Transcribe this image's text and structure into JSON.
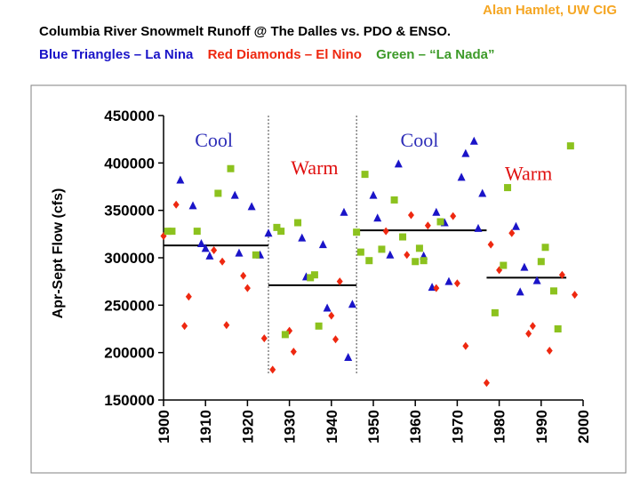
{
  "header": {
    "credit": "Alan Hamlet, UW CIG",
    "title": "Columbia River Snowmelt Runoff @ The Dalles   vs.  PDO & ENSO.",
    "legend_la_nina": "Blue Triangles – La Nina",
    "legend_el_nino": "Red Diamonds – El Nino",
    "legend_la_nada": "Green – “La Nada”"
  },
  "colors": {
    "la_nina": "#1A14C8",
    "el_nino": "#EE2810",
    "la_nada": "#8CC21E",
    "credit": "#F5A623",
    "cool_label": "#2E2EB8",
    "warm_label": "#E01010"
  },
  "chart_data": {
    "type": "scatter",
    "xlabel": "",
    "ylabel": "Apr-Sept Flow (cfs)",
    "xlim": [
      1900,
      2000
    ],
    "ylim": [
      150000,
      450000
    ],
    "x_ticks": [
      "1900",
      "1910",
      "1920",
      "1930",
      "1940",
      "1950",
      "1960",
      "1970",
      "1980",
      "1990",
      "2000"
    ],
    "y_ticks": [
      "150000",
      "200000",
      "250000",
      "300000",
      "350000",
      "400000",
      "450000"
    ],
    "regime_dividers": [
      1925,
      1946
    ],
    "regimes": [
      {
        "label": "Cool",
        "label_x": 1912,
        "label_y": 417000,
        "x_start": 1900,
        "x_end": 1925,
        "mean": 313000
      },
      {
        "label": "Warm",
        "label_x": 1936,
        "label_y": 388000,
        "x_start": 1925,
        "x_end": 1946,
        "mean": 271000
      },
      {
        "label": "Cool",
        "label_x": 1961,
        "label_y": 417000,
        "x_start": 1946,
        "x_end": 1977,
        "mean": 329000
      },
      {
        "label": "Warm",
        "label_x": 1987,
        "label_y": 382000,
        "x_start": 1977,
        "x_end": 1996,
        "mean": 279000
      }
    ],
    "series": [
      {
        "name": "La Nina",
        "marker": "triangle",
        "points": [
          [
            1904,
            382000
          ],
          [
            1907,
            355000
          ],
          [
            1909,
            315000
          ],
          [
            1910,
            310000
          ],
          [
            1911,
            302000
          ],
          [
            1917,
            366000
          ],
          [
            1918,
            305000
          ],
          [
            1921,
            354000
          ],
          [
            1923,
            303000
          ],
          [
            1925,
            326000
          ],
          [
            1933,
            321000
          ],
          [
            1934,
            280000
          ],
          [
            1938,
            314000
          ],
          [
            1939,
            247000
          ],
          [
            1943,
            348000
          ],
          [
            1944,
            195000
          ],
          [
            1945,
            251000
          ],
          [
            1950,
            366000
          ],
          [
            1951,
            342000
          ],
          [
            1954,
            303000
          ],
          [
            1956,
            399000
          ],
          [
            1962,
            302000
          ],
          [
            1964,
            269000
          ],
          [
            1965,
            348000
          ],
          [
            1967,
            337000
          ],
          [
            1968,
            275000
          ],
          [
            1971,
            385000
          ],
          [
            1972,
            410000
          ],
          [
            1974,
            423000
          ],
          [
            1975,
            331000
          ],
          [
            1976,
            368000
          ],
          [
            1984,
            333000
          ],
          [
            1985,
            264000
          ],
          [
            1986,
            290000
          ],
          [
            1989,
            276000
          ]
        ]
      },
      {
        "name": "El Nino",
        "marker": "diamond",
        "points": [
          [
            1900,
            323000
          ],
          [
            1903,
            356000
          ],
          [
            1905,
            228000
          ],
          [
            1906,
            259000
          ],
          [
            1912,
            308000
          ],
          [
            1914,
            296000
          ],
          [
            1915,
            229000
          ],
          [
            1919,
            281000
          ],
          [
            1920,
            268000
          ],
          [
            1924,
            215000
          ],
          [
            1926,
            182000
          ],
          [
            1930,
            223000
          ],
          [
            1931,
            201000
          ],
          [
            1940,
            239000
          ],
          [
            1941,
            214000
          ],
          [
            1942,
            275000
          ],
          [
            1953,
            328000
          ],
          [
            1958,
            303000
          ],
          [
            1959,
            345000
          ],
          [
            1963,
            334000
          ],
          [
            1965,
            268000
          ],
          [
            1969,
            344000
          ],
          [
            1970,
            273000
          ],
          [
            1972,
            207000
          ],
          [
            1977,
            168000
          ],
          [
            1978,
            314000
          ],
          [
            1980,
            287000
          ],
          [
            1983,
            326000
          ],
          [
            1987,
            220000
          ],
          [
            1988,
            228000
          ],
          [
            1992,
            202000
          ],
          [
            1995,
            282000
          ],
          [
            1998,
            261000
          ]
        ]
      },
      {
        "name": "La Nada",
        "marker": "square",
        "points": [
          [
            1901,
            328000
          ],
          [
            1902,
            328000
          ],
          [
            1908,
            328000
          ],
          [
            1913,
            368000
          ],
          [
            1916,
            394000
          ],
          [
            1922,
            303000
          ],
          [
            1927,
            332000
          ],
          [
            1928,
            328000
          ],
          [
            1929,
            219000
          ],
          [
            1932,
            337000
          ],
          [
            1935,
            279000
          ],
          [
            1936,
            282000
          ],
          [
            1937,
            228000
          ],
          [
            1946,
            327000
          ],
          [
            1947,
            306000
          ],
          [
            1948,
            388000
          ],
          [
            1949,
            297000
          ],
          [
            1952,
            309000
          ],
          [
            1955,
            361000
          ],
          [
            1957,
            322000
          ],
          [
            1960,
            296000
          ],
          [
            1961,
            310000
          ],
          [
            1962,
            297000
          ],
          [
            1966,
            338000
          ],
          [
            1979,
            242000
          ],
          [
            1981,
            292000
          ],
          [
            1982,
            374000
          ],
          [
            1990,
            296000
          ],
          [
            1991,
            311000
          ],
          [
            1993,
            265000
          ],
          [
            1994,
            225000
          ],
          [
            1997,
            418000
          ]
        ]
      }
    ]
  }
}
